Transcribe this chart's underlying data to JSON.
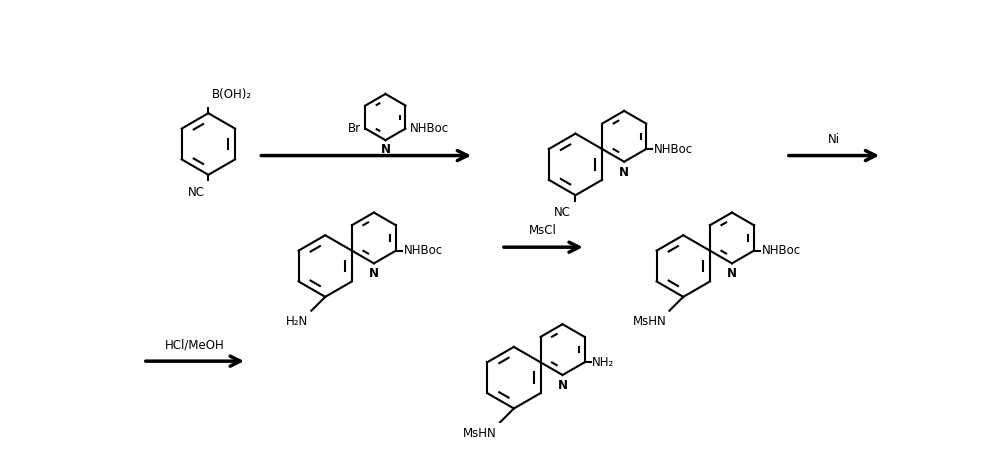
{
  "background": "#ffffff",
  "line_color": "#000000",
  "line_width": 1.5,
  "arrow_color": "#000000",
  "font_size": 8.5,
  "fig_width": 10.0,
  "fig_height": 4.75,
  "dpi": 100,
  "structures": {
    "mol1_boh2": "B(OH)₂",
    "mol1_cn": "NC",
    "mol2_br": "Br",
    "mol2_nhboc": "NHBoc",
    "mol2_n": "N",
    "mol3_nhboc": "NHBoc",
    "mol3_nc": "NC",
    "mol3_n": "N",
    "reagent1": "Ni",
    "mol4_nh2": "H₂N",
    "mol4_nhboc": "NHBoc",
    "mol4_n": "N",
    "reagent2": "MsCl",
    "mol5_mshn": "MsHN",
    "mol5_nhboc": "NHBoc",
    "mol5_n": "N",
    "reagent3": "HCl/MeOH",
    "mol6_mshn": "MsHN",
    "mol6_nh2": "NH₂",
    "mol6_n": "N"
  }
}
